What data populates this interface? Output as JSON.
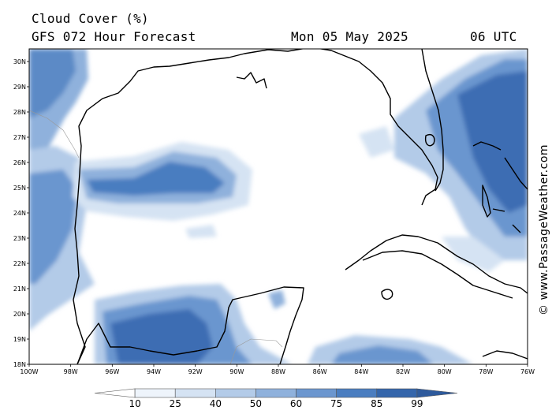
{
  "header": {
    "title": "Cloud Cover (%)",
    "subtitle": "GFS 072 Hour Forecast",
    "date": "Mon 05 May 2025",
    "time": "06 UTC"
  },
  "credit": "© www.PassageWeather.com",
  "map": {
    "lon_range": [
      -100,
      -76
    ],
    "lat_range": [
      18,
      30.5
    ],
    "lat_ticks": [
      {
        "value": 18,
        "label": "18N"
      },
      {
        "value": 19,
        "label": "19N"
      },
      {
        "value": 20,
        "label": "20N"
      },
      {
        "value": 21,
        "label": "21N"
      },
      {
        "value": 22,
        "label": "22N"
      },
      {
        "value": 23,
        "label": "23N"
      },
      {
        "value": 24,
        "label": "24N"
      },
      {
        "value": 25,
        "label": "25N"
      },
      {
        "value": 26,
        "label": "26N"
      },
      {
        "value": 27,
        "label": "27N"
      },
      {
        "value": 28,
        "label": "28N"
      },
      {
        "value": 29,
        "label": "29N"
      },
      {
        "value": 30,
        "label": "30N"
      }
    ],
    "lon_ticks": [
      {
        "value": -100,
        "label": "100W"
      },
      {
        "value": -98,
        "label": "98W"
      },
      {
        "value": -96,
        "label": "96W"
      },
      {
        "value": -94,
        "label": "94W"
      },
      {
        "value": -92,
        "label": "92W"
      },
      {
        "value": -90,
        "label": "90W"
      },
      {
        "value": -88,
        "label": "88W"
      },
      {
        "value": -86,
        "label": "86W"
      },
      {
        "value": -84,
        "label": "84W"
      },
      {
        "value": -82,
        "label": "82W"
      },
      {
        "value": -80,
        "label": "80W"
      },
      {
        "value": -78,
        "label": "78W"
      },
      {
        "value": -76,
        "label": "76W"
      }
    ]
  },
  "colorbar": {
    "levels": [
      "10",
      "25",
      "40",
      "50",
      "60",
      "75",
      "85",
      "99"
    ],
    "colors": [
      "#ffffff",
      "#eef4fb",
      "#d5e3f3",
      "#b3cbe8",
      "#8fb1dc",
      "#6b96cf",
      "#4a7dc0",
      "#3465ab",
      "#2e5a9c"
    ]
  }
}
